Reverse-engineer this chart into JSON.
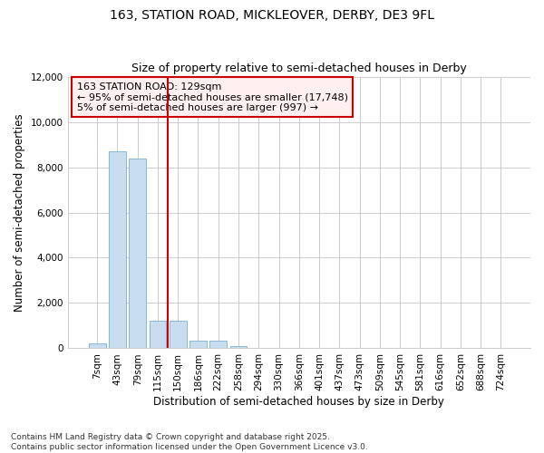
{
  "title_line1": "163, STATION ROAD, MICKLEOVER, DERBY, DE3 9FL",
  "title_line2": "Size of property relative to semi-detached houses in Derby",
  "xlabel": "Distribution of semi-detached houses by size in Derby",
  "ylabel": "Number of semi-detached properties",
  "footer_line1": "Contains HM Land Registry data © Crown copyright and database right 2025.",
  "footer_line2": "Contains public sector information licensed under the Open Government Licence v3.0.",
  "annotation_title": "163 STATION ROAD: 129sqm",
  "annotation_line1": "← 95% of semi-detached houses are smaller (17,748)",
  "annotation_line2": "5% of semi-detached houses are larger (997) →",
  "categories": [
    "7sqm",
    "43sqm",
    "79sqm",
    "115sqm",
    "150sqm",
    "186sqm",
    "222sqm",
    "258sqm",
    "294sqm",
    "330sqm",
    "366sqm",
    "401sqm",
    "437sqm",
    "473sqm",
    "509sqm",
    "545sqm",
    "581sqm",
    "616sqm",
    "652sqm",
    "688sqm",
    "724sqm"
  ],
  "bar_values": [
    200,
    8700,
    8400,
    1200,
    1200,
    350,
    350,
    100,
    0,
    0,
    0,
    0,
    0,
    0,
    0,
    0,
    0,
    0,
    0,
    0,
    0
  ],
  "bar_color": "#c9ddf0",
  "bar_edgecolor": "#7bafd4",
  "vline_color": "#cc0000",
  "vline_position": 3.5,
  "ylim": [
    0,
    12000
  ],
  "yticks": [
    0,
    2000,
    4000,
    6000,
    8000,
    10000,
    12000
  ],
  "grid_color": "#cccccc",
  "bg_color": "#ffffff",
  "annotation_box_facecolor": "#fff0f0",
  "annotation_box_edge": "#cc0000",
  "title_fontsize": 10,
  "subtitle_fontsize": 9,
  "axis_label_fontsize": 8.5,
  "tick_fontsize": 7.5,
  "annotation_fontsize": 8,
  "footer_fontsize": 6.5
}
